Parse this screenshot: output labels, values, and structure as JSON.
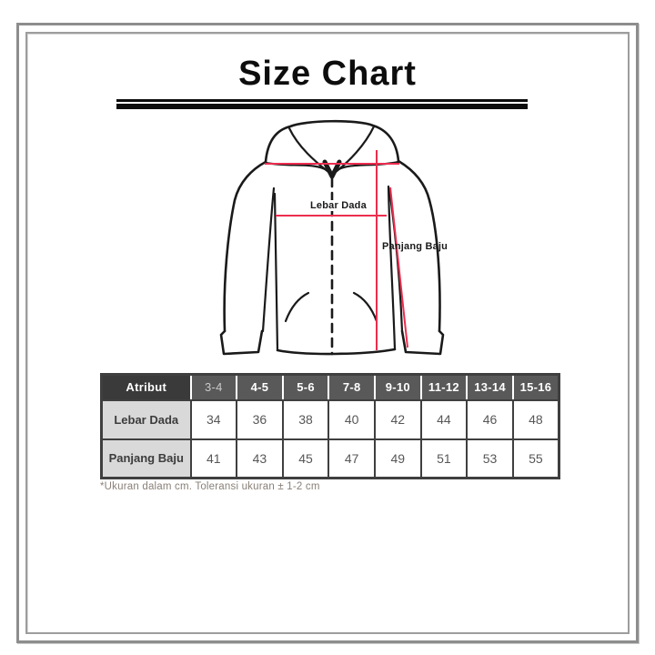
{
  "page": {
    "title": "Size Chart",
    "footnote": "*Ukuran dalam cm. Toleransi ukuran ± 1-2 cm"
  },
  "diagram": {
    "garment": "hooded-zip-jacket",
    "labels": {
      "chest": "Lebar Dada",
      "length": "Panjang Baju"
    }
  },
  "table": {
    "attribute_header": "Atribut",
    "size_headers": [
      "3-4",
      "4-5",
      "5-6",
      "7-8",
      "9-10",
      "11-12",
      "13-14",
      "15-16"
    ],
    "rows": [
      {
        "label": "Lebar Dada",
        "values": [
          34,
          36,
          38,
          40,
          42,
          44,
          46,
          48
        ]
      },
      {
        "label": "Panjang Baju",
        "values": [
          41,
          43,
          45,
          47,
          49,
          51,
          53,
          55
        ]
      }
    ]
  },
  "colors": {
    "accent_red": "#ec2d4e",
    "header_dark": "#3a3a3a",
    "header_gray": "#595959",
    "row_label_bg": "#d9d9d9",
    "table_border": "#3f3f3f",
    "footnote_text": "#8a8078",
    "frame_gray": "#8d8d8d"
  }
}
